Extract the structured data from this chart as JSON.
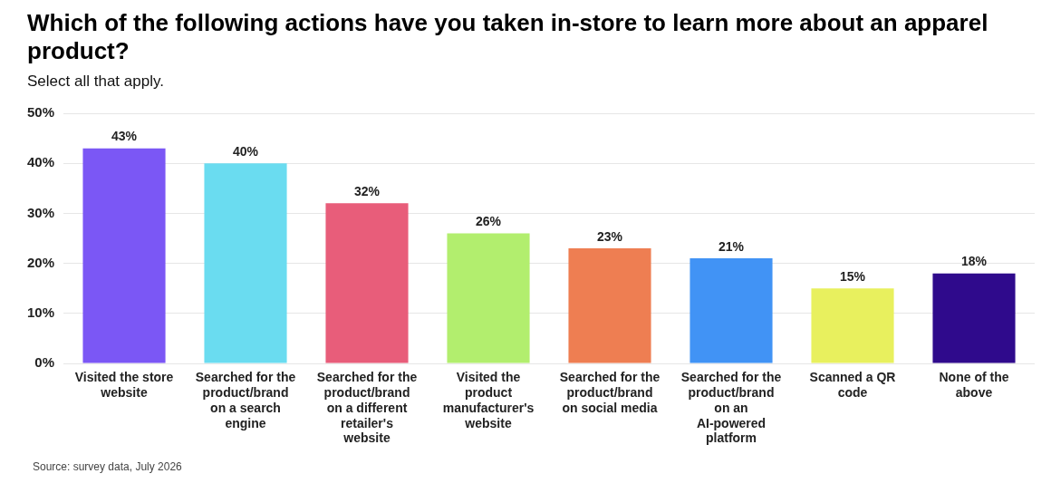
{
  "chart_data": {
    "type": "bar",
    "title": "Which of the following actions have you taken in-store to learn more about an apparel product?",
    "subtitle": "Select all that apply.",
    "categories": [
      "Visited the store website",
      "Searched for the product/brand on a search engine",
      "Searched for the product/brand on a different retailer's website",
      "Visited the product manufacturer's website",
      "Searched for the product/brand on social media",
      "Searched for the product/brand on an AI-powered platform",
      "Scanned a QR code",
      "None of the above"
    ],
    "values": [
      43,
      40,
      32,
      26,
      23,
      21,
      15,
      18
    ],
    "colors": [
      "#7b57f5",
      "#6adcf0",
      "#e85d7a",
      "#b2ee6e",
      "#ee7e52",
      "#4193f5",
      "#e8f05e",
      "#2f0a8c"
    ],
    "ylim": [
      0,
      50
    ],
    "yticks": [
      {
        "value": 0,
        "label": "0%"
      },
      {
        "value": 10,
        "label": "10%"
      },
      {
        "value": 20,
        "label": "20%"
      },
      {
        "value": 30,
        "label": "30%"
      },
      {
        "value": 40,
        "label": "40%"
      },
      {
        "value": 50,
        "label": "50%"
      }
    ],
    "value_labels": [
      "43%",
      "40%",
      "32%",
      "26%",
      "23%",
      "21%",
      "15%",
      "18%"
    ],
    "grid": "y",
    "annotations": [
      "Source: survey data, July 2026"
    ]
  }
}
